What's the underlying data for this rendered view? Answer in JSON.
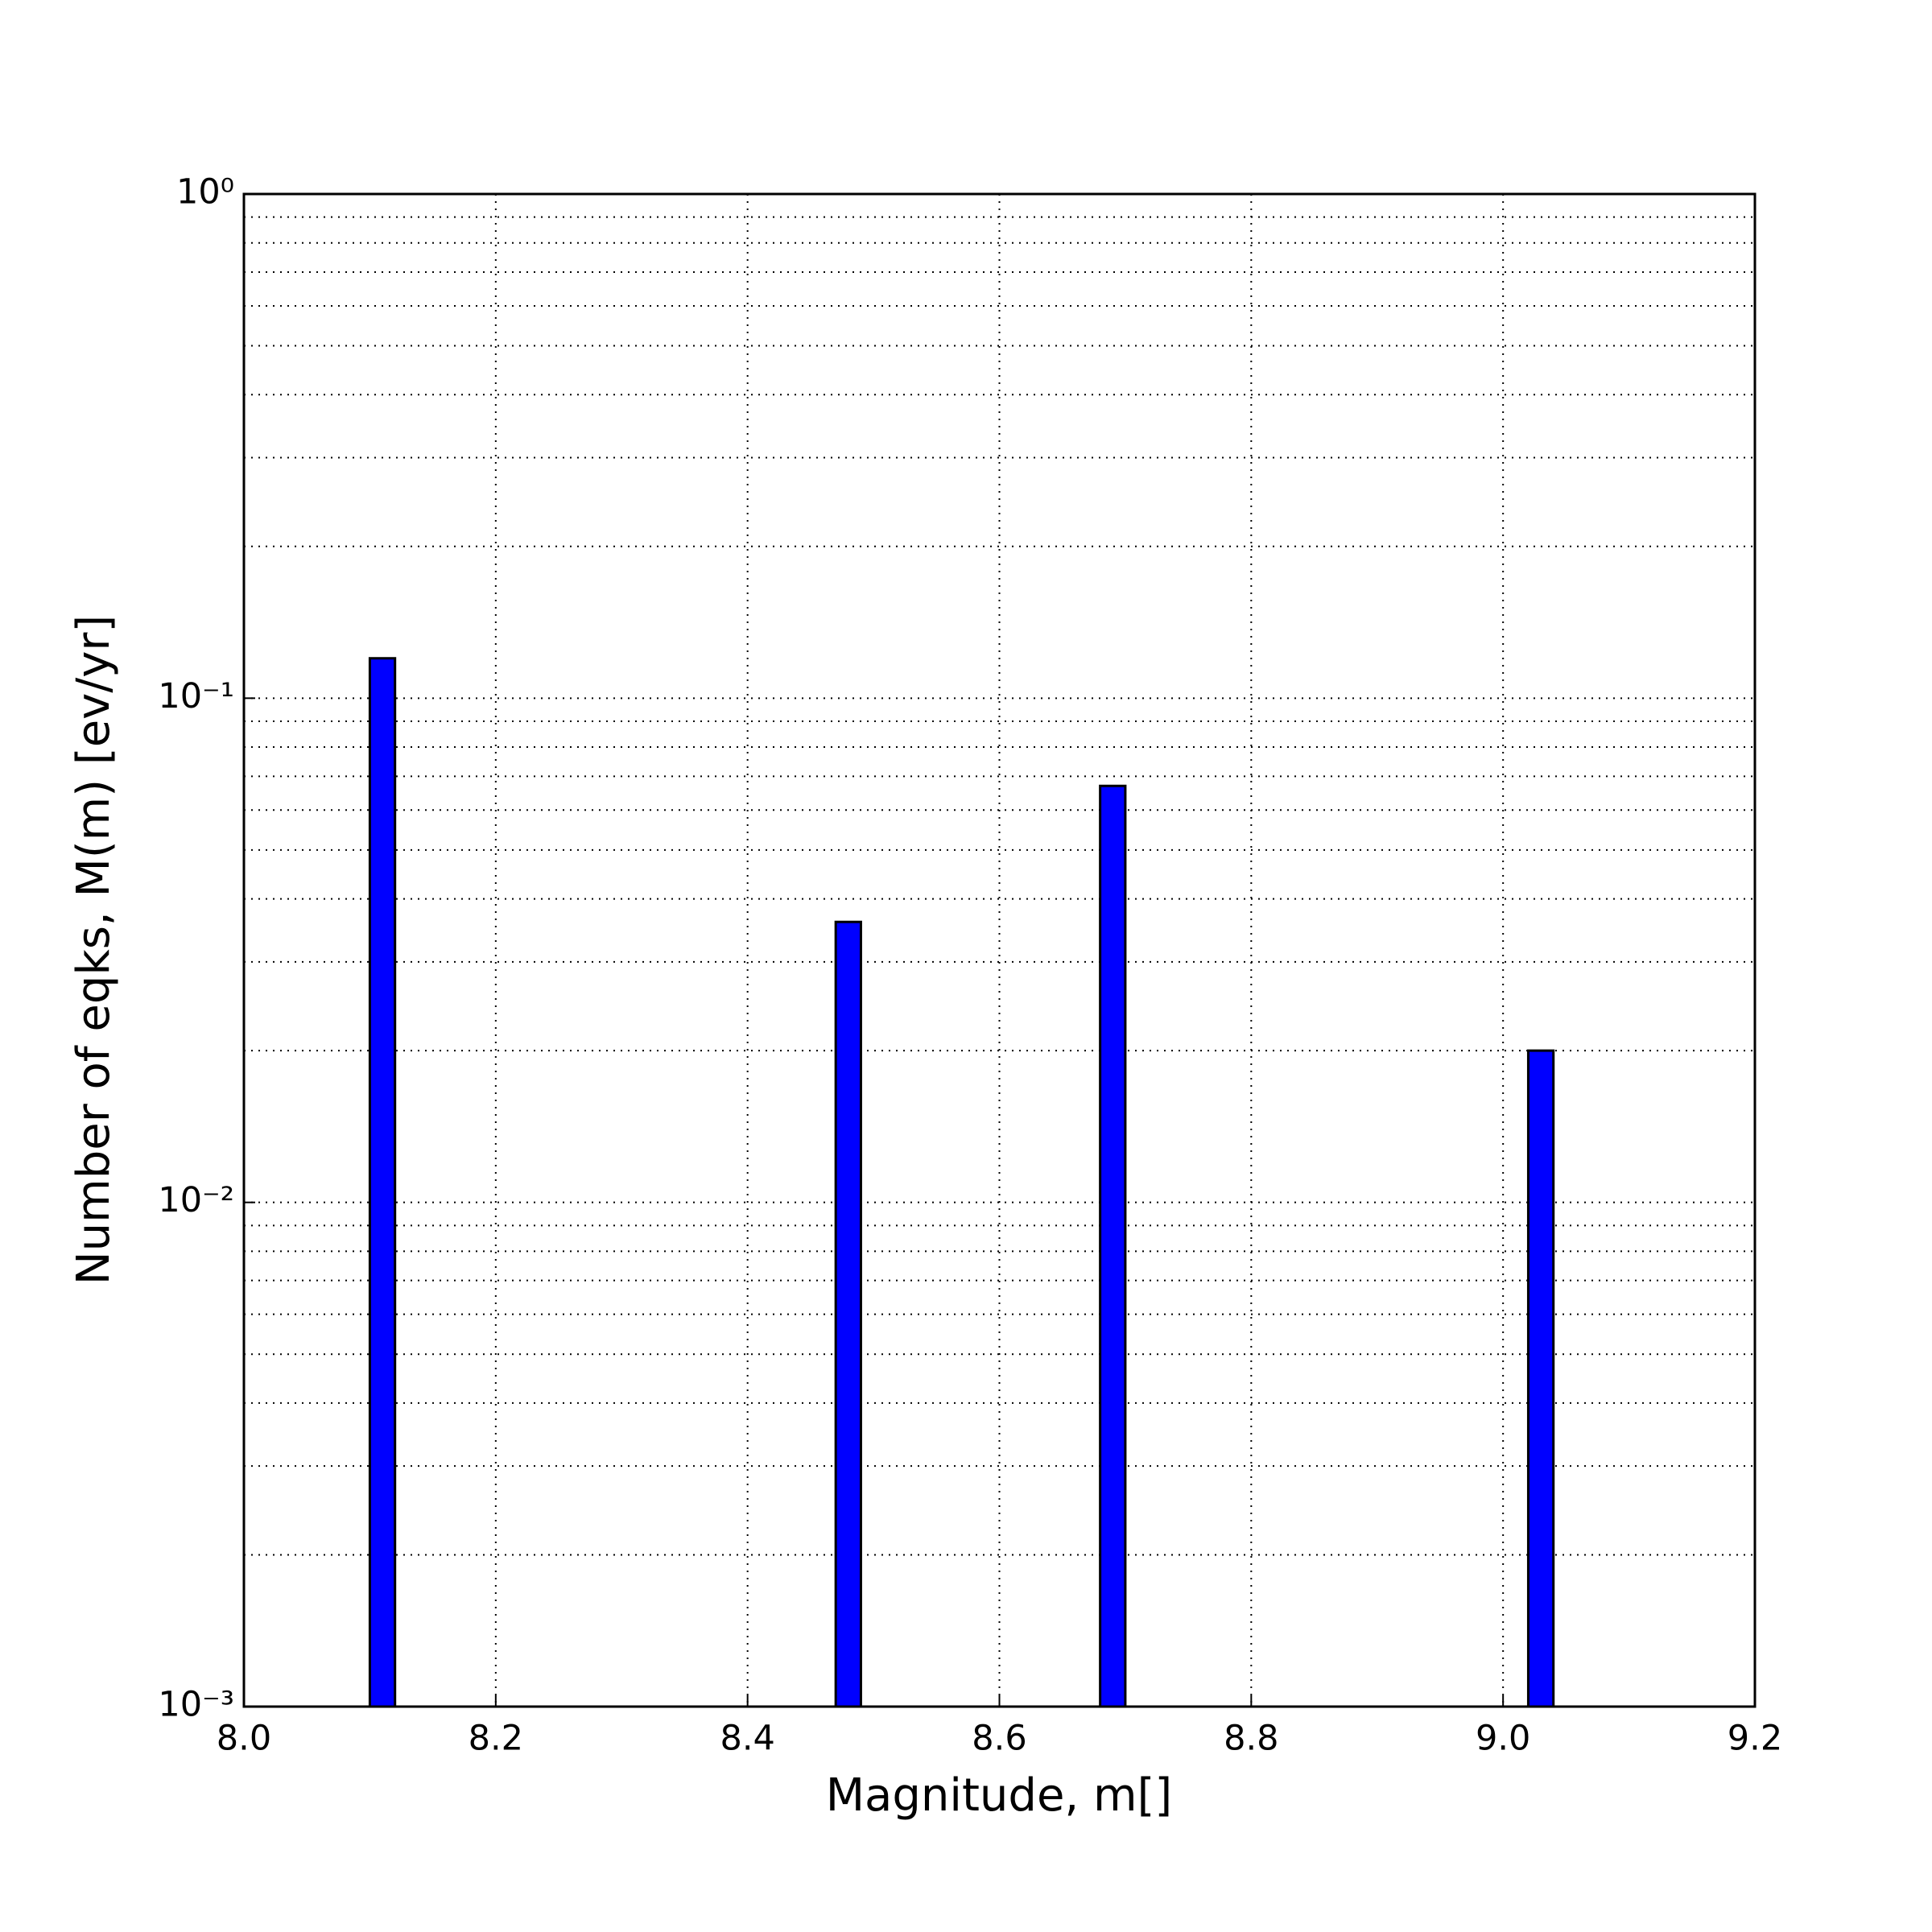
{
  "chart_data": {
    "type": "bar",
    "xlabel": "Magnitude, m[]",
    "ylabel": "Number of eqks, M(m) [ev/yr]",
    "x": [
      8.11,
      8.48,
      8.69,
      9.03
    ],
    "bar_width": 0.02,
    "values": [
      0.12,
      0.036,
      0.067,
      0.02
    ],
    "color": "#0000ff",
    "edgecolor": "#000000",
    "xlim": [
      8.0,
      9.2
    ],
    "xticks": [
      {
        "value": 8.0,
        "label": "8.0"
      },
      8.2,
      8.4,
      8.6,
      8.8,
      {
        "value": 9.0,
        "label": "9.0"
      },
      9.2
    ],
    "ylim": [
      0.001,
      1
    ],
    "yscale": "log",
    "yticks": [
      {
        "value": 0.001,
        "label": "10⁻³"
      },
      {
        "value": 0.01,
        "label": "10⁻²"
      },
      {
        "value": 0.1,
        "label": "10⁻¹"
      },
      {
        "value": 1,
        "label": "10⁰"
      }
    ],
    "y_minor_ticks": [
      0.002,
      0.003,
      0.004,
      0.005,
      0.006,
      0.007,
      0.008,
      0.009,
      0.02,
      0.03,
      0.04,
      0.05,
      0.06,
      0.07,
      0.08,
      0.09,
      0.2,
      0.3,
      0.4,
      0.5,
      0.6,
      0.7,
      0.8,
      0.9
    ],
    "grid": true
  }
}
